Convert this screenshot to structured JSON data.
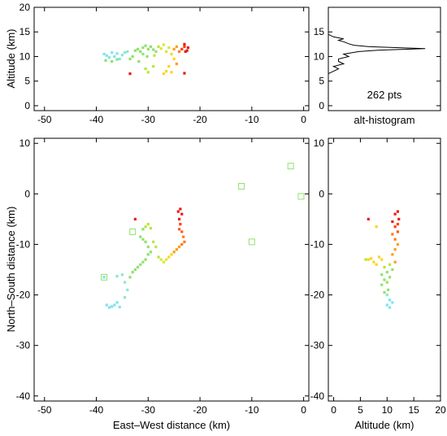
{
  "chart_data": [
    {
      "type": "scatter",
      "id": "alt-vs-ew",
      "xlabel": "",
      "ylabel": "Altitude (km)",
      "xlim": [
        -52,
        1
      ],
      "ylim": [
        -1,
        20
      ],
      "xticks": [
        -50,
        -40,
        -30,
        -20,
        -10,
        0
      ],
      "yticks": [
        0,
        5,
        10,
        15,
        20
      ],
      "color_note": "points colored by time: cyan (early) -> green -> yellow -> orange -> red (late)",
      "points": [
        [
          -38.5,
          10.5,
          "#7fe3ef"
        ],
        [
          -38.0,
          10.2,
          "#7fe3ef"
        ],
        [
          -37.5,
          9.8,
          "#7fe3ef"
        ],
        [
          -37.0,
          10.8,
          "#7fe3ef"
        ],
        [
          -36.5,
          10.0,
          "#7fe3ef"
        ],
        [
          -36.0,
          10.6,
          "#7fe3ef"
        ],
        [
          -35.5,
          9.5,
          "#7fe3ef"
        ],
        [
          -35.0,
          10.3,
          "#8fe6d0"
        ],
        [
          -34.5,
          10.8,
          "#8fe6d0"
        ],
        [
          -34.0,
          11.0,
          "#8fe6d0"
        ],
        [
          -38.2,
          9.2,
          "#8ee36a"
        ],
        [
          -37.0,
          9.0,
          "#8ee36a"
        ],
        [
          -36.0,
          9.4,
          "#8ee36a"
        ],
        [
          -33.5,
          9.5,
          "#8ee36a"
        ],
        [
          -33.0,
          10.0,
          "#8ee36a"
        ],
        [
          -32.5,
          11.2,
          "#8ee36a"
        ],
        [
          -32.0,
          11.5,
          "#8ee36a"
        ],
        [
          -31.5,
          11.0,
          "#8ee36a"
        ],
        [
          -31.0,
          11.8,
          "#8ee36a"
        ],
        [
          -30.5,
          12.2,
          "#8ee36a"
        ],
        [
          -30.0,
          11.5,
          "#8ee36a"
        ],
        [
          -29.5,
          12.0,
          "#8ee36a"
        ],
        [
          -29.0,
          11.4,
          "#8ee36a"
        ],
        [
          -28.5,
          11.0,
          "#8ee36a"
        ],
        [
          -31.8,
          9.0,
          "#8ee36a"
        ],
        [
          -31.0,
          10.5,
          "#8ee36a"
        ],
        [
          -30.2,
          10.0,
          "#8ee36a"
        ],
        [
          -28.8,
          10.2,
          "#b8e63a"
        ],
        [
          -30.5,
          7.5,
          "#b8e63a"
        ],
        [
          -30.0,
          6.8,
          "#b8e63a"
        ],
        [
          -29.0,
          8.0,
          "#b8e63a"
        ],
        [
          -28.0,
          12.0,
          "#b8e63a"
        ],
        [
          -27.5,
          11.6,
          "#d8e830"
        ],
        [
          -27.0,
          12.4,
          "#d8e830"
        ],
        [
          -26.5,
          11.0,
          "#d8e830"
        ],
        [
          -26.0,
          11.8,
          "#d8e830"
        ],
        [
          -25.5,
          10.5,
          "#ffd21f"
        ],
        [
          -25.0,
          9.5,
          "#ffd21f"
        ],
        [
          -26.0,
          8.0,
          "#ffd21f"
        ],
        [
          -26.5,
          7.0,
          "#ffd21f"
        ],
        [
          -27.0,
          6.5,
          "#ffd21f"
        ],
        [
          -25.5,
          6.8,
          "#ffd21f"
        ],
        [
          -24.5,
          8.5,
          "#ff9d1a"
        ],
        [
          -25.0,
          11.5,
          "#ff9d1a"
        ],
        [
          -24.5,
          12.0,
          "#ff9d1a"
        ],
        [
          -24.0,
          11.0,
          "#ff7a1a"
        ],
        [
          -23.5,
          11.5,
          "#ff3c14"
        ],
        [
          -23.0,
          12.0,
          "#ff3c14"
        ],
        [
          -22.5,
          11.2,
          "#e81c10"
        ],
        [
          -22.3,
          11.8,
          "#e81c10"
        ],
        [
          -23.0,
          12.5,
          "#e81c10"
        ],
        [
          -22.8,
          11.0,
          "#e81c10"
        ],
        [
          -33.5,
          6.5,
          "#e81c10"
        ],
        [
          -23.0,
          6.6,
          "#e81c10"
        ]
      ],
      "outliers": []
    },
    {
      "type": "line",
      "id": "alt-histogram",
      "caption": "alt-histogram",
      "annotation": "262 pts",
      "xlim": [
        0,
        22
      ],
      "ylim": [
        -1,
        20
      ],
      "yticks": [
        0,
        5,
        10,
        15
      ],
      "xlabel": "",
      "ylabel": "",
      "x_counts": [
        0,
        0,
        0,
        1,
        2,
        1,
        3,
        2,
        2,
        4,
        3,
        6,
        10,
        19,
        8,
        5,
        4,
        3,
        2,
        3,
        1,
        0,
        0,
        0
      ],
      "y_alt": [
        5.5,
        6.0,
        6.5,
        7.0,
        7.5,
        8.0,
        8.5,
        9.0,
        9.5,
        10.0,
        10.5,
        11.0,
        11.3,
        11.6,
        12.0,
        12.3,
        12.6,
        13.0,
        13.3,
        13.6,
        14.0,
        14.5,
        15.0,
        16.0
      ]
    },
    {
      "type": "scatter",
      "id": "ns-vs-ew",
      "xlabel": "East–West distance (km)",
      "ylabel": "North–South distance (km)",
      "xlim": [
        -52,
        1
      ],
      "ylim": [
        -41,
        11
      ],
      "xticks": [
        -50,
        -40,
        -30,
        -20,
        -10,
        0
      ],
      "yticks": [
        -40,
        -30,
        -20,
        -10,
        0,
        10
      ],
      "points": [
        [
          -38.0,
          -22.0,
          "#7fe3ef"
        ],
        [
          -37.5,
          -22.5,
          "#7fe3ef"
        ],
        [
          -37.0,
          -22.3,
          "#7fe3ef"
        ],
        [
          -36.5,
          -22.0,
          "#7fe3ef"
        ],
        [
          -36.0,
          -21.5,
          "#7fe3ef"
        ],
        [
          -35.5,
          -22.4,
          "#7fe3ef"
        ],
        [
          -38.5,
          -16.5,
          "#7fe3ef"
        ],
        [
          -36.0,
          -16.3,
          "#8fe6d0"
        ],
        [
          -35.0,
          -16.0,
          "#8fe6d0"
        ],
        [
          -34.5,
          -17.5,
          "#8fe6d0"
        ],
        [
          -34.0,
          -19.0,
          "#8fe6d0"
        ],
        [
          -34.5,
          -20.5,
          "#8fe6d0"
        ],
        [
          -33.5,
          -16.5,
          "#8ee36a"
        ],
        [
          -33.0,
          -15.5,
          "#8ee36a"
        ],
        [
          -32.5,
          -15.0,
          "#8ee36a"
        ],
        [
          -32.0,
          -14.5,
          "#8ee36a"
        ],
        [
          -31.5,
          -14.0,
          "#8ee36a"
        ],
        [
          -31.0,
          -13.5,
          "#8ee36a"
        ],
        [
          -30.5,
          -13.0,
          "#8ee36a"
        ],
        [
          -30.0,
          -12.0,
          "#8ee36a"
        ],
        [
          -29.5,
          -11.5,
          "#8ee36a"
        ],
        [
          -30.0,
          -10.5,
          "#8ee36a"
        ],
        [
          -30.5,
          -9.5,
          "#8ee36a"
        ],
        [
          -31.0,
          -9.0,
          "#8ee36a"
        ],
        [
          -31.5,
          -8.5,
          "#8ee36a"
        ],
        [
          -31.0,
          -7.0,
          "#8ee36a"
        ],
        [
          -30.5,
          -6.5,
          "#b8e63a"
        ],
        [
          -30.0,
          -6.0,
          "#b8e63a"
        ],
        [
          -29.5,
          -6.8,
          "#b8e63a"
        ],
        [
          -29.0,
          -9.5,
          "#b8e63a"
        ],
        [
          -28.5,
          -10.5,
          "#b8e63a"
        ],
        [
          -28.0,
          -12.5,
          "#b8e63a"
        ],
        [
          -27.5,
          -13.0,
          "#d8e830"
        ],
        [
          -27.0,
          -13.5,
          "#d8e830"
        ],
        [
          -26.5,
          -13.0,
          "#d8e830"
        ],
        [
          -26.0,
          -12.5,
          "#ffd21f"
        ],
        [
          -25.5,
          -12.0,
          "#ffd21f"
        ],
        [
          -25.0,
          -11.5,
          "#ff9d1a"
        ],
        [
          -24.5,
          -11.0,
          "#ff9d1a"
        ],
        [
          -24.0,
          -10.5,
          "#ff9d1a"
        ],
        [
          -23.5,
          -10.0,
          "#ff7a1a"
        ],
        [
          -23.0,
          -9.5,
          "#ff7a1a"
        ],
        [
          -23.2,
          -8.5,
          "#ff7a1a"
        ],
        [
          -23.5,
          -7.5,
          "#ff5a16"
        ],
        [
          -24.0,
          -7.0,
          "#ff5a16"
        ],
        [
          -23.8,
          -6.0,
          "#ff3c14"
        ],
        [
          -24.0,
          -5.0,
          "#e81c10"
        ],
        [
          -23.5,
          -4.0,
          "#e81c10"
        ],
        [
          -24.2,
          -3.5,
          "#e81c10"
        ],
        [
          -23.8,
          -3.0,
          "#e81c10"
        ],
        [
          -32.5,
          -5.0,
          "#e81c10"
        ]
      ],
      "outliers": [
        [
          -38.5,
          -16.5
        ],
        [
          -33.0,
          -7.5
        ],
        [
          -12.0,
          1.5
        ],
        [
          -10.0,
          -9.5
        ],
        [
          -2.5,
          5.5
        ],
        [
          -0.5,
          -0.5
        ]
      ]
    },
    {
      "type": "scatter",
      "id": "ns-vs-alt",
      "xlabel": "Altitude (km)",
      "ylabel": "",
      "xlim": [
        -1,
        20
      ],
      "ylim": [
        -41,
        11
      ],
      "xticks": [
        0,
        5,
        10,
        15,
        20
      ],
      "yticks": [
        -40,
        -30,
        -20,
        -10,
        0,
        10
      ],
      "points": [
        [
          10.5,
          -22.5,
          "#7fe3ef"
        ],
        [
          10.0,
          -22.0,
          "#7fe3ef"
        ],
        [
          11.0,
          -21.5,
          "#7fe3ef"
        ],
        [
          10.5,
          -21.0,
          "#7fe3ef"
        ],
        [
          10.0,
          -20.0,
          "#8fe6d0"
        ],
        [
          9.5,
          -19.5,
          "#8ee36a"
        ],
        [
          10.2,
          -19.0,
          "#8ee36a"
        ],
        [
          9.0,
          -18.0,
          "#8ee36a"
        ],
        [
          10.0,
          -17.5,
          "#8ee36a"
        ],
        [
          9.5,
          -17.0,
          "#8ee36a"
        ],
        [
          10.5,
          -16.5,
          "#8ee36a"
        ],
        [
          9.0,
          -16.0,
          "#8ee36a"
        ],
        [
          10.0,
          -15.5,
          "#8ee36a"
        ],
        [
          11.0,
          -15.0,
          "#8ee36a"
        ],
        [
          9.5,
          -14.5,
          "#b8e63a"
        ],
        [
          10.5,
          -14.0,
          "#b8e63a"
        ],
        [
          8.0,
          -14.0,
          "#ffd21f"
        ],
        [
          7.5,
          -13.5,
          "#ffd21f"
        ],
        [
          6.5,
          -13.0,
          "#ffd21f"
        ],
        [
          7.0,
          -12.8,
          "#ffd21f"
        ],
        [
          8.5,
          -12.5,
          "#ffd21f"
        ],
        [
          9.0,
          -13.0,
          "#ffd21f"
        ],
        [
          11.5,
          -13.5,
          "#ff9d1a"
        ],
        [
          11.0,
          -12.0,
          "#ff9d1a"
        ],
        [
          11.5,
          -11.0,
          "#ff9d1a"
        ],
        [
          12.0,
          -10.0,
          "#ff9d1a"
        ],
        [
          11.5,
          -9.0,
          "#ff7a1a"
        ],
        [
          11.0,
          -8.0,
          "#ff7a1a"
        ],
        [
          12.0,
          -7.5,
          "#ff5a16"
        ],
        [
          11.5,
          -6.5,
          "#ff3c14"
        ],
        [
          12.0,
          -6.0,
          "#ff3c14"
        ],
        [
          11.0,
          -5.5,
          "#e81c10"
        ],
        [
          12.2,
          -5.0,
          "#e81c10"
        ],
        [
          11.5,
          -4.0,
          "#e81c10"
        ],
        [
          12.0,
          -3.5,
          "#e81c10"
        ],
        [
          6.5,
          -5.0,
          "#e81c10"
        ],
        [
          8.0,
          -6.5,
          "#ffd21f"
        ],
        [
          6.0,
          -13.0,
          "#b8e63a"
        ]
      ],
      "outliers": []
    }
  ]
}
